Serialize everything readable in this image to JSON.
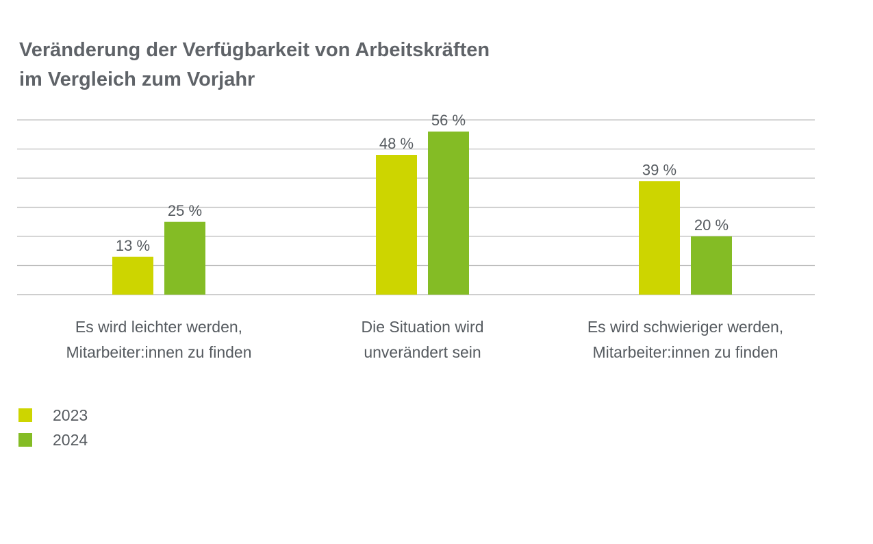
{
  "chart_data": {
    "type": "bar",
    "title": [
      "Veränderung der Verfügbarkeit von Arbeitskräften",
      "im Vergleich zum Vorjahr"
    ],
    "categories": [
      [
        "Es wird leichter werden,",
        "Mitarbeiter:innen zu finden"
      ],
      [
        "Die Situation wird",
        "unverändert sein"
      ],
      [
        "Es wird schwieriger werden,",
        "Mitarbeiter:innen zu finden"
      ]
    ],
    "series": [
      {
        "name": "2023",
        "color": "#cdd500",
        "values": [
          13,
          48,
          39
        ],
        "labels": [
          "13 %",
          "48 %",
          "39 %"
        ]
      },
      {
        "name": "2024",
        "color": "#84bc25",
        "values": [
          25,
          56,
          20
        ],
        "labels": [
          "25 %",
          "56 %",
          "20 %"
        ]
      }
    ],
    "ylim": [
      0,
      60
    ],
    "grid": true,
    "legend_position": "bottom-left"
  }
}
